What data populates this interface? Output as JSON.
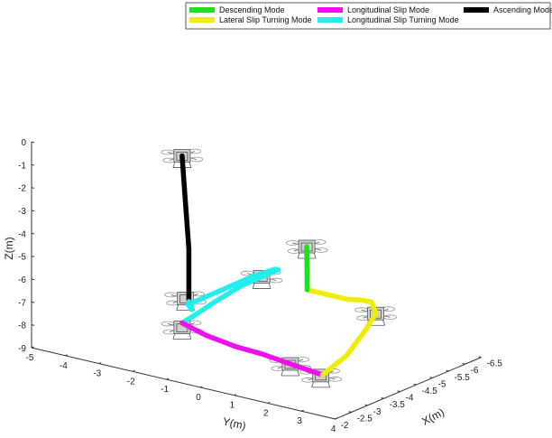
{
  "chart_data": {
    "type": "line",
    "title": "",
    "xlabel": "X(m)",
    "ylabel": "Y(m)",
    "zlabel": "Z(m)",
    "x_ticks": [
      "-2",
      "-2.5",
      "-3",
      "-3.5",
      "-4",
      "-4.5",
      "-5",
      "-5.5",
      "-6",
      "-6.5"
    ],
    "y_ticks": [
      "-5",
      "-4",
      "-3",
      "-2",
      "-1",
      "0",
      "1",
      "2",
      "3",
      "4"
    ],
    "z_ticks": [
      "0",
      "-1",
      "-2",
      "-3",
      "-4",
      "-5",
      "-6",
      "-7",
      "-8",
      "-9"
    ],
    "xlim": [
      -6.5,
      -2
    ],
    "ylim": [
      -5,
      4
    ],
    "zlim": [
      -9,
      0
    ],
    "grid": false,
    "legend_position": "top-right",
    "legend": [
      {
        "name": "Descending Mode",
        "color": "#22dd22"
      },
      {
        "name": "Longitudinal Slip Mode",
        "color": "#ee11ee"
      },
      {
        "name": "Ascending Mode",
        "color": "#000000"
      },
      {
        "name": "Lateral Slip Turning Mode",
        "color": "#eeee00"
      },
      {
        "name": "Longitudinal Slip Turning Mode",
        "color": "#22eeee"
      }
    ],
    "series": [
      {
        "name": "Ascending Mode",
        "color": "#000000",
        "points": [
          [
            -3.0,
            -1.5,
            0.0
          ],
          [
            -3.0,
            -1.4,
            -2.0
          ],
          [
            -3.0,
            -1.3,
            -4.0
          ],
          [
            -3.0,
            -1.3,
            -6.0
          ],
          [
            -3.0,
            -1.3,
            -6.3
          ]
        ]
      },
      {
        "name": "Longitudinal Slip Turning Mode",
        "color": "#22eeee",
        "points": [
          [
            -3.0,
            -1.3,
            -6.3
          ],
          [
            -3.2,
            -1.4,
            -6.7
          ],
          [
            -3.4,
            -1.6,
            -7.0
          ],
          [
            -3.6,
            -1.9,
            -7.0
          ],
          [
            -4.0,
            -1.5,
            -6.6
          ],
          [
            -4.4,
            -0.8,
            -5.9
          ],
          [
            -4.6,
            -0.3,
            -5.5
          ],
          [
            -4.4,
            0.0,
            -5.3
          ],
          [
            -4.1,
            -0.1,
            -5.4
          ],
          [
            -3.8,
            -0.5,
            -5.8
          ],
          [
            -3.5,
            -1.0,
            -6.5
          ],
          [
            -3.3,
            -1.4,
            -7.1
          ],
          [
            -3.1,
            -1.6,
            -7.4
          ]
        ]
      },
      {
        "name": "Longitudinal Slip Mode",
        "color": "#ee11ee",
        "points": [
          [
            -3.1,
            -1.6,
            -7.4
          ],
          [
            -3.0,
            -0.8,
            -7.6
          ],
          [
            -2.9,
            0.2,
            -7.7
          ],
          [
            -2.85,
            1.0,
            -7.7
          ],
          [
            -2.8,
            1.9,
            -7.8
          ],
          [
            -2.75,
            2.9,
            -7.9
          ]
        ]
      },
      {
        "name": "Lateral Slip Turning Mode",
        "color": "#eeee00",
        "points": [
          [
            -2.75,
            2.9,
            -7.9
          ],
          [
            -3.4,
            3.0,
            -7.4
          ],
          [
            -4.1,
            2.9,
            -6.7
          ],
          [
            -4.6,
            2.7,
            -6.4
          ],
          [
            -5.2,
            2.0,
            -6.5
          ],
          [
            -5.5,
            1.4,
            -6.8
          ],
          [
            -5.6,
            0.9,
            -7.0
          ],
          [
            -5.6,
            0.3,
            -7.0
          ],
          [
            -5.5,
            -0.2,
            -6.9
          ]
        ]
      },
      {
        "name": "Descending Mode",
        "color": "#22dd22",
        "points": [
          [
            -5.5,
            -0.2,
            -6.9
          ],
          [
            -5.6,
            -0.3,
            -6.4
          ],
          [
            -5.7,
            -0.4,
            -5.8
          ],
          [
            -5.8,
            -0.5,
            -5.3
          ]
        ]
      }
    ],
    "drone_positions": [
      [
        -3.0,
        -1.5,
        0.0
      ],
      [
        -5.8,
        -0.5,
        -5.3
      ],
      [
        -3.0,
        -1.4,
        -6.2
      ],
      [
        -4.1,
        -0.2,
        -5.5
      ],
      [
        -3.0,
        -1.5,
        -7.5
      ],
      [
        -4.6,
        2.7,
        -6.4
      ],
      [
        -2.8,
        1.9,
        -7.8
      ],
      [
        -2.7,
        2.9,
        -7.9
      ]
    ]
  }
}
